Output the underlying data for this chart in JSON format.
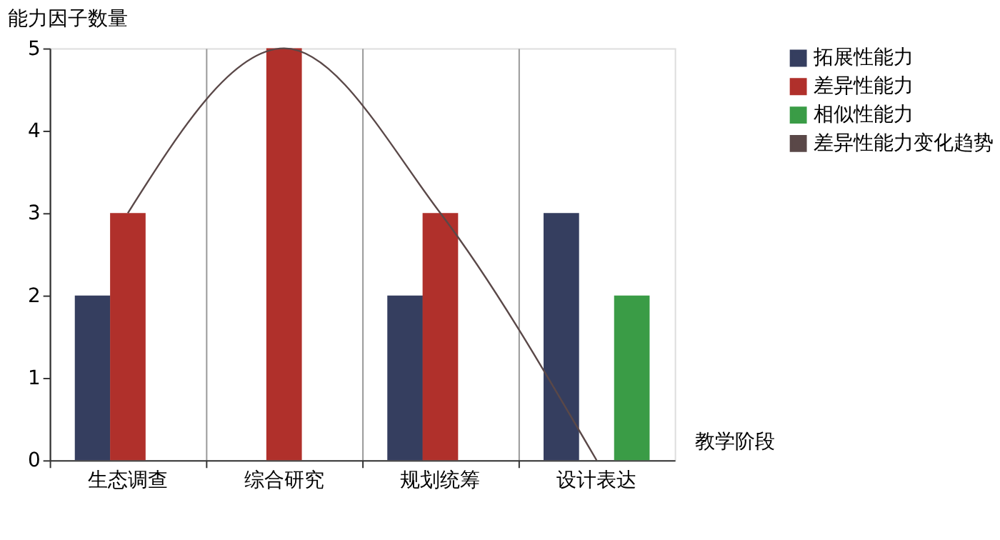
{
  "chart_data": {
    "type": "bar",
    "xlabel": "教学阶段",
    "ylabel": "能力因子数量",
    "categories": [
      "生态调查",
      "综合研究",
      "规划统筹",
      "设计表达"
    ],
    "series": [
      {
        "name": "拓展性能力",
        "color": "#353e5f",
        "values": [
          2,
          null,
          2,
          3
        ]
      },
      {
        "name": "差异性能力",
        "color": "#b0302b",
        "values": [
          3,
          5,
          3,
          null
        ]
      },
      {
        "name": "相似性能力",
        "color": "#3a9c46",
        "values": [
          null,
          null,
          null,
          2
        ]
      },
      {
        "name": "差异性能力变化趋势",
        "color": "#5a4848",
        "type": "line",
        "values": [
          3,
          5,
          3,
          0
        ]
      }
    ],
    "ylim": [
      0,
      5
    ],
    "yticks": [
      0,
      1,
      2,
      3,
      4,
      5
    ],
    "grid": "x",
    "legend": "right",
    "line_style": "solid",
    "marker": "none"
  }
}
